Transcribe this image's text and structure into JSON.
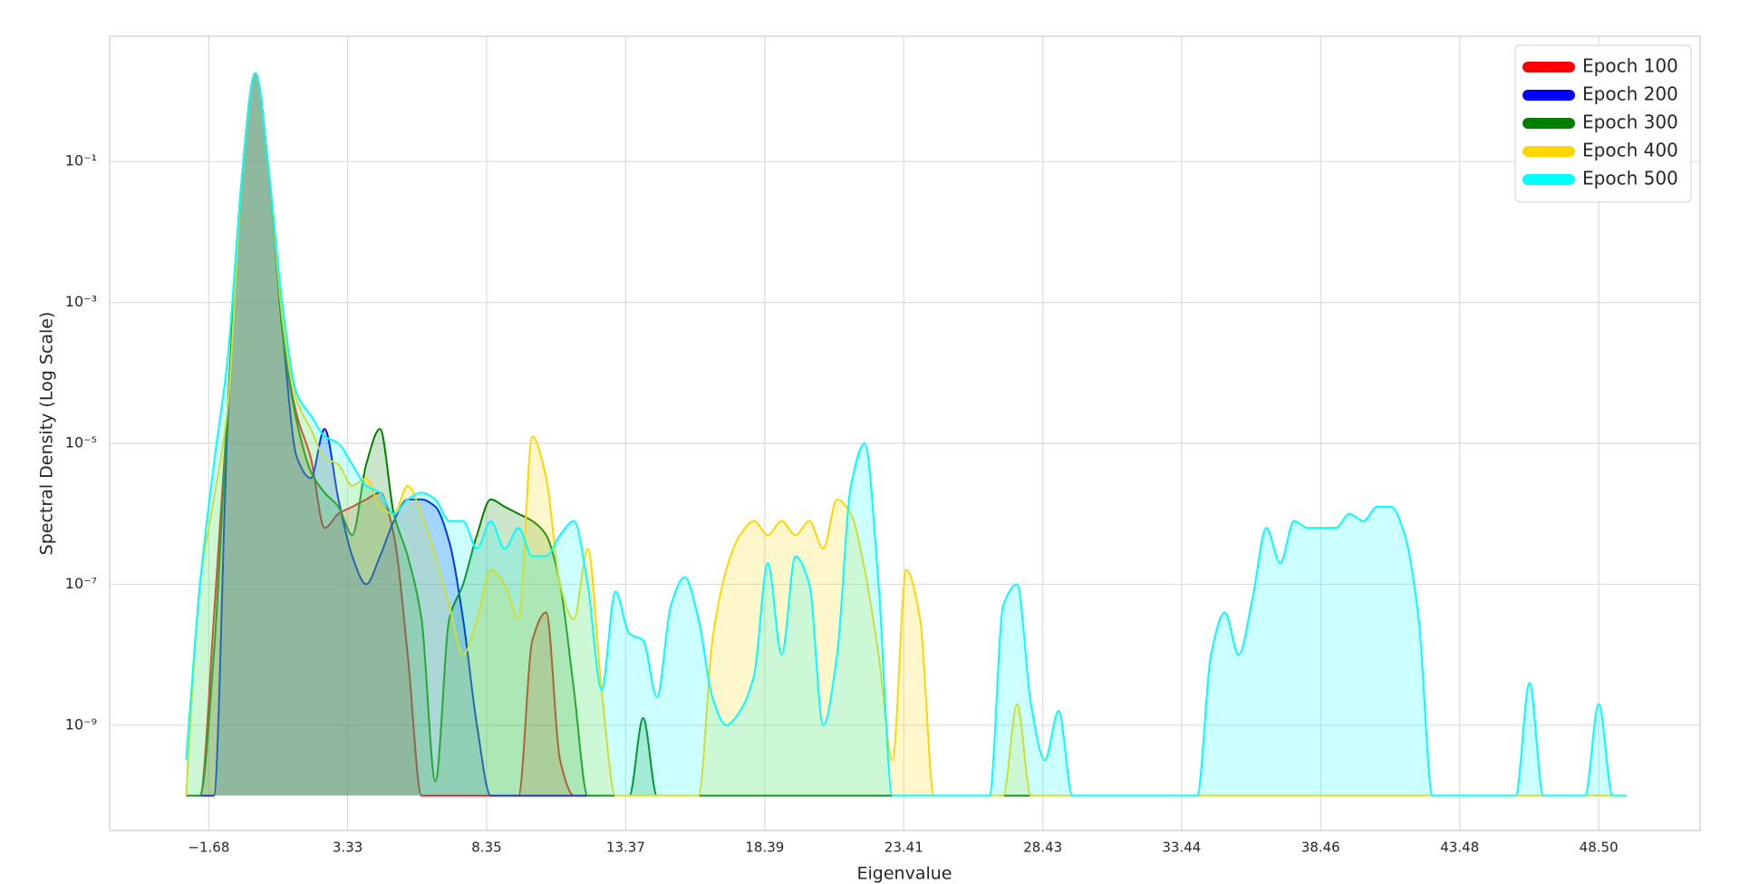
{
  "chart_data": {
    "type": "area",
    "x_label": "Eigenvalue",
    "y_label": "Spectral Density (Log Scale)",
    "log_y": true,
    "grid": true,
    "legend": "upper right",
    "xlim": [
      -5.26,
      52.16
    ],
    "ylim": [
      3.2e-11,
      6
    ],
    "xticks": [
      {
        "value": -1.68,
        "label": "−1.68"
      },
      3.33,
      8.35,
      13.37,
      18.39,
      23.41,
      28.43,
      33.44,
      38.46,
      43.48,
      {
        "value": 48.5,
        "label": "48.50"
      }
    ],
    "yticks": [
      {
        "value": 0.1,
        "label": "10⁻¹"
      },
      {
        "value": 0.001,
        "label": "10⁻³"
      },
      {
        "value": 1e-05,
        "label": "10⁻⁵"
      },
      {
        "value": 1e-07,
        "label": "10⁻⁷"
      },
      {
        "value": 1e-09,
        "label": "10⁻⁹"
      }
    ],
    "x": [
      -2.5,
      -2,
      -1.5,
      -1,
      -0.5,
      0,
      0.5,
      1,
      1.5,
      2,
      2.5,
      3,
      3.5,
      4,
      4.5,
      5,
      5.5,
      6,
      6.5,
      7,
      7.5,
      8,
      8.5,
      9,
      9.5,
      10,
      10.5,
      11,
      11.5,
      12,
      12.5,
      13,
      13.5,
      14,
      14.5,
      15,
      15.5,
      16,
      16.5,
      17,
      17.5,
      18,
      18.5,
      19,
      19.5,
      20,
      20.5,
      21,
      21.5,
      22,
      22.5,
      23,
      23.5,
      24,
      24.5,
      25,
      25.5,
      26,
      26.5,
      27,
      27.5,
      28,
      28.5,
      29,
      29.5,
      30,
      30.5,
      31,
      31.5,
      32,
      32.5,
      33,
      33.5,
      34,
      34.5,
      35,
      35.5,
      36,
      36.5,
      37,
      37.5,
      38,
      38.5,
      39,
      39.5,
      40,
      40.5,
      41,
      41.5,
      42,
      42.5,
      43,
      43.5,
      44,
      44.5,
      45,
      45.5,
      46,
      46.5,
      47,
      47.5,
      48,
      48.5,
      49,
      49.5
    ],
    "series": [
      {
        "name": "Epoch 100",
        "color": "#ff0000",
        "values": [
          1e-10,
          1e-10,
          3.2e-08,
          3.2e-05,
          0.05,
          1.8,
          0.063,
          0.00032,
          2.5e-05,
          6.3e-06,
          6.3e-07,
          1e-06,
          1.26e-06,
          1.6e-06,
          2e-06,
          5e-07,
          1e-08,
          1e-10,
          1e-10,
          1e-10,
          1e-10,
          1e-10,
          1e-10,
          1e-10,
          1e-10,
          1.6e-08,
          4e-08,
          3.2e-10,
          1e-10,
          1e-10,
          1e-10,
          1e-10,
          1e-10,
          1e-10,
          1e-10,
          1e-10,
          1e-10,
          1e-10,
          1e-10,
          1e-10,
          1e-10,
          1e-10,
          1e-10,
          1e-10,
          1e-10,
          1e-10,
          1e-10,
          1e-10,
          1e-10,
          1e-10,
          1e-10,
          1e-10,
          1e-10,
          1e-10,
          1e-10,
          1e-10,
          1e-10,
          1e-10,
          1e-10,
          1e-10,
          1e-10,
          1e-10,
          1e-10,
          1e-10,
          1e-10,
          1e-10,
          1e-10,
          1e-10,
          1e-10,
          1e-10,
          1e-10,
          1e-10,
          1e-10,
          1e-10,
          1e-10,
          1e-10,
          1e-10,
          1e-10,
          1e-10,
          1e-10,
          1e-10,
          1e-10,
          1e-10,
          1e-10,
          1e-10,
          1e-10,
          1e-10,
          1e-10,
          1e-10,
          1e-10,
          1e-10,
          1e-10,
          1e-10,
          1e-10,
          1e-10,
          1e-10,
          1e-10,
          1e-10,
          1e-10,
          1e-10,
          1e-10,
          1e-10,
          1e-10,
          1e-10,
          1e-10
        ]
      },
      {
        "name": "Epoch 200",
        "color": "#0000ff",
        "values": [
          1e-10,
          1e-10,
          1e-10,
          2e-05,
          0.05,
          1.8,
          0.063,
          0.00032,
          6.3e-06,
          3.2e-06,
          1.6e-05,
          1.6e-06,
          2.5e-07,
          1e-07,
          2.5e-07,
          7.9e-07,
          1.6e-06,
          1.6e-06,
          1.26e-06,
          4e-07,
          3.2e-08,
          1e-09,
          1e-10,
          1e-10,
          1e-10,
          1e-10,
          1e-10,
          1e-10,
          1e-10,
          1e-10,
          1e-10,
          1e-10,
          1e-10,
          1e-10,
          1e-10,
          1e-10,
          1e-10,
          1e-10,
          1e-10,
          1e-10,
          1e-10,
          1e-10,
          1e-10,
          1e-10,
          1e-10,
          1e-10,
          1e-10,
          1e-10,
          1e-10,
          1e-10,
          1e-10,
          1e-10,
          1e-10,
          1e-10,
          1e-10,
          1e-10,
          1e-10,
          1e-10,
          1e-10,
          1e-10,
          1e-10,
          1e-10,
          1e-10,
          1e-10,
          1e-10,
          1e-10,
          1e-10,
          1e-10,
          1e-10,
          1e-10,
          1e-10,
          1e-10,
          1e-10,
          1e-10,
          1e-10,
          1e-10,
          1e-10,
          1e-10,
          1e-10,
          1e-10,
          1e-10,
          1e-10,
          1e-10,
          1e-10,
          1e-10,
          1e-10,
          1e-10,
          1e-10,
          1e-10,
          1e-10,
          1e-10,
          1e-10,
          1e-10,
          1e-10,
          1e-10,
          1e-10,
          1e-10,
          1e-10,
          1e-10,
          1e-10,
          1e-10,
          1e-10,
          1e-10,
          1e-10,
          1e-10
        ]
      },
      {
        "name": "Epoch 300",
        "color": "#008000",
        "values": [
          1e-10,
          1e-10,
          1e-08,
          3.2e-05,
          0.05,
          1.8,
          0.063,
          0.00032,
          2e-05,
          4e-06,
          2e-06,
          1.26e-06,
          5e-07,
          5e-06,
          1.6e-05,
          1e-06,
          2.5e-07,
          3.2e-08,
          1.6e-10,
          3.2e-08,
          1e-07,
          5e-07,
          1.6e-06,
          1.26e-06,
          1e-06,
          7.9e-07,
          5e-07,
          1e-07,
          3.2e-09,
          1e-10,
          1e-10,
          1e-10,
          1e-10,
          1.26e-09,
          1e-10,
          1e-10,
          1e-10,
          1e-10,
          1e-10,
          1e-10,
          1e-10,
          1e-10,
          1e-10,
          1e-10,
          1e-10,
          1e-10,
          1e-10,
          1e-10,
          1e-10,
          1e-10,
          1e-10,
          1e-10,
          1e-10,
          1e-10,
          1e-10,
          1e-10,
          1e-10,
          1e-10,
          1e-10,
          1e-10,
          1e-10,
          1e-10,
          1e-10,
          1e-10,
          1e-10,
          1e-10,
          1e-10,
          1e-10,
          1e-10,
          1e-10,
          1e-10,
          1e-10,
          1e-10,
          1e-10,
          1e-10,
          1e-10,
          1e-10,
          1e-10,
          1e-10,
          1e-10,
          1e-10,
          1e-10,
          1e-10,
          1e-10,
          1e-10,
          1e-10,
          1e-10,
          1e-10,
          1e-10,
          1e-10,
          1e-10,
          1e-10,
          1e-10,
          1e-10,
          1e-10,
          1e-10,
          1e-10,
          1e-10,
          1e-10,
          1e-10,
          1e-10,
          1e-10,
          1e-10,
          1e-10,
          1e-10
        ]
      },
      {
        "name": "Epoch 400",
        "color": "#ffd700",
        "values": [
          1e-10,
          1e-07,
          1.6e-06,
          3.2e-05,
          0.05,
          1.8,
          0.063,
          0.0005,
          4e-05,
          1.6e-05,
          6.3e-06,
          5e-06,
          2.5e-06,
          3.2e-06,
          1.26e-06,
          1e-06,
          2.5e-06,
          1e-06,
          2.5e-07,
          5e-08,
          1e-08,
          3.2e-08,
          1.6e-07,
          1e-07,
          3.2e-08,
          1.26e-05,
          3.2e-06,
          1e-07,
          3.2e-08,
          3.2e-07,
          3.2e-09,
          1e-10,
          1e-10,
          1e-10,
          1e-10,
          1e-10,
          1e-10,
          1e-10,
          1.6e-08,
          1.6e-07,
          5e-07,
          7.9e-07,
          5e-07,
          7.9e-07,
          5e-07,
          7.9e-07,
          3.2e-07,
          1.6e-06,
          1e-06,
          1.6e-07,
          1e-08,
          3.2e-10,
          1.6e-07,
          3.2e-08,
          1e-10,
          1e-10,
          1e-10,
          1e-10,
          1e-10,
          1e-10,
          2e-09,
          1e-10,
          1e-10,
          1e-10,
          1e-10,
          1e-10,
          1e-10,
          1e-10,
          1e-10,
          1e-10,
          1e-10,
          1e-10,
          1e-10,
          1e-10,
          1e-10,
          1e-10,
          1e-10,
          1e-10,
          1e-10,
          1e-10,
          1e-10,
          1e-10,
          1e-10,
          1e-10,
          1e-10,
          1e-10,
          1e-10,
          1e-10,
          1e-10,
          1e-10,
          1e-10,
          1e-10,
          1e-10,
          1e-10,
          1e-10,
          1e-10,
          1e-10,
          1e-10,
          1e-10,
          1e-10,
          1e-10,
          1e-10,
          1e-10,
          1e-10,
          1e-10
        ]
      },
      {
        "name": "Epoch 500",
        "color": "#00ffff",
        "values": [
          3.2e-10,
          1e-07,
          5e-06,
          0.00016,
          0.05,
          1.8,
          0.063,
          0.00079,
          5e-05,
          2.5e-05,
          1.26e-05,
          1e-05,
          5e-06,
          2.5e-06,
          2e-06,
          1e-06,
          1.6e-06,
          2e-06,
          1.6e-06,
          7.9e-07,
          7.9e-07,
          3.2e-07,
          7.9e-07,
          3.2e-07,
          6.3e-07,
          2.5e-07,
          2.5e-07,
          5e-07,
          7.9e-07,
          1e-07,
          3.2e-09,
          7.9e-08,
          2e-08,
          1.6e-08,
          2.5e-09,
          5e-08,
          1.26e-07,
          3.2e-08,
          2.5e-09,
          1e-09,
          1.6e-09,
          5e-09,
          2e-07,
          1e-08,
          2.5e-07,
          1e-07,
          1e-09,
          1e-08,
          2.5e-06,
          1e-05,
          1e-07,
          1e-10,
          1e-10,
          1e-10,
          1e-10,
          1e-10,
          1e-10,
          1e-10,
          1e-10,
          5e-08,
          1e-07,
          2e-09,
          3.2e-10,
          1.6e-09,
          1e-10,
          1e-10,
          1e-10,
          1e-10,
          1e-10,
          1e-10,
          1e-10,
          1e-10,
          1e-10,
          1e-10,
          1e-08,
          4e-08,
          1e-08,
          6.3e-08,
          6.3e-07,
          2e-07,
          7.9e-07,
          6.3e-07,
          6.3e-07,
          6.3e-07,
          1e-06,
          7.9e-07,
          1.26e-06,
          1.26e-06,
          5e-07,
          3.2e-08,
          1e-10,
          1e-10,
          1e-10,
          1e-10,
          1e-10,
          1e-10,
          1e-10,
          4e-09,
          1e-10,
          1e-10,
          1e-10,
          1e-10,
          2e-09,
          1e-10,
          1e-10
        ]
      }
    ]
  }
}
